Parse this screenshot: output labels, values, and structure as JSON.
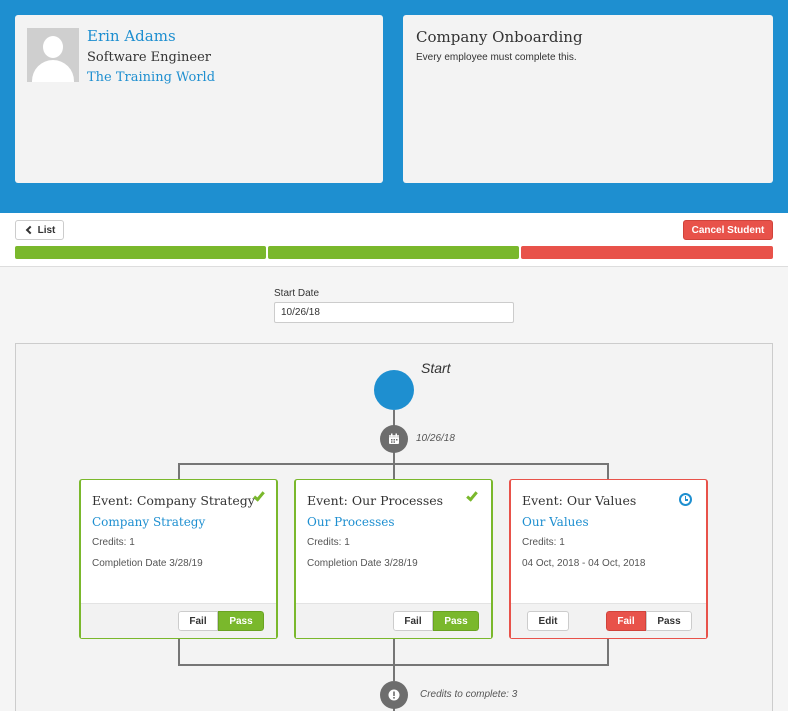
{
  "profile": {
    "name": "Erin Adams",
    "role": "Software Engineer",
    "organization": "The Training World"
  },
  "course": {
    "title": "Company Onboarding",
    "description": "Every employee must complete this."
  },
  "toolbar": {
    "list_label": "List",
    "cancel_label": "Cancel Student"
  },
  "progress": [
    "complete",
    "complete",
    "failed"
  ],
  "start_date": {
    "label": "Start Date",
    "value": "10/26/18"
  },
  "flow": {
    "start_label": "Start",
    "date_node_label": "10/26/18",
    "credits_node_label": "Credits to complete: 3",
    "events": [
      {
        "title": "Event: Company Strategy",
        "link": "Company Strategy",
        "credits": "Credits: 1",
        "date": "Completion Date 3/28/19",
        "status": "passed",
        "fail_label": "Fail",
        "pass_label": "Pass"
      },
      {
        "title": "Event: Our Processes",
        "link": "Our Processes",
        "credits": "Credits: 1",
        "date": "Completion Date 3/28/19",
        "status": "passed",
        "fail_label": "Fail",
        "pass_label": "Pass"
      },
      {
        "title": "Event: Our Values",
        "link": "Our Values",
        "credits": "Credits: 1",
        "date": "04 Oct, 2018 - 04 Oct, 2018",
        "status": "failed",
        "edit_label": "Edit",
        "fail_label": "Fail",
        "pass_label": "Pass"
      }
    ]
  },
  "colors": {
    "brand_blue": "#1e8fd0",
    "success_green": "#7ab82c",
    "danger_red": "#e8524a"
  }
}
